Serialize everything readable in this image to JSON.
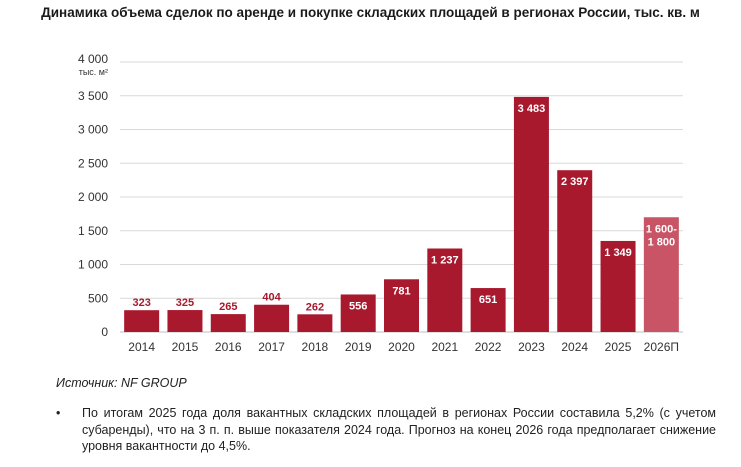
{
  "title": "Динамика объема сделок по аренде и покупке складских площадей в регионах России, тыс. кв. м",
  "source": "Источник: NF GROUP",
  "note": {
    "bullet": "•",
    "text": "По итогам 2025 года доля вакантных складских площадей в регионах России составила 5,2% (с учетом субаренды), что на 3 п. п. выше показателя 2024 года. Прогноз на конец 2026 года предполагает снижение уровня вакантности до 4,5%."
  },
  "colors": {
    "bar": "#a8192e",
    "forecast": "#c85465",
    "label_on_bar": "#ffffff",
    "label_above": "#a8192e",
    "grid": "#d9d9d9",
    "axis_text": "#333333"
  },
  "chart_data": {
    "type": "bar",
    "title": "Динамика объема сделок по аренде и покупке складских площадей в регионах России, тыс. кв. м",
    "ylabel": "тыс. м²",
    "xlabel": "",
    "ylim": [
      0,
      4000
    ],
    "yticks": [
      0,
      500,
      1000,
      1500,
      2000,
      2500,
      3000,
      3500,
      4000
    ],
    "ytick_labels": [
      "0",
      "500",
      "1 000",
      "1 500",
      "2 000",
      "2 500",
      "3 000",
      "3 500",
      "4 000"
    ],
    "grid": true,
    "categories": [
      "2014",
      "2015",
      "2016",
      "2017",
      "2018",
      "2019",
      "2020",
      "2021",
      "2022",
      "2023",
      "2024",
      "2025",
      "2026П"
    ],
    "values": [
      323,
      325,
      265,
      404,
      262,
      556,
      781,
      1237,
      651,
      3483,
      2397,
      1349,
      1700
    ],
    "labels": [
      "323",
      "325",
      "265",
      "404",
      "262",
      "556",
      "781",
      "1 237",
      "651",
      "3 483",
      "2 397",
      "1 349",
      "1 600-\n1 800"
    ],
    "forecast_index": 12
  }
}
